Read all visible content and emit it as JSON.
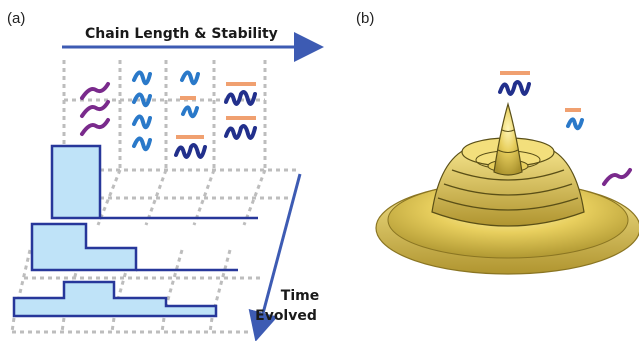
{
  "panel_a": {
    "label": "(a)",
    "axis_title": "Chain Length & Stability",
    "time_label_line1": "Time",
    "time_label_line2": "Evolved"
  },
  "panel_b": {
    "label": "(b)"
  },
  "colors": {
    "arrow": "#3d5bb3",
    "histogram_fill": "#bfe3f8",
    "histogram_stroke": "#27379a",
    "grid": "#bdbdbd",
    "monomer_chain": "#7a2a8c",
    "dimer_chain": "#2a79c9",
    "oligomer_chain": "#22308c",
    "bar_mark": "#f0a070",
    "landscape": "#e8cf5e",
    "landscape_edge": "#5a4f17"
  },
  "icons": [
    "purple-strand-icon",
    "blue-coil-icon",
    "capped-coil-icon",
    "capped-double-coil-icon"
  ]
}
